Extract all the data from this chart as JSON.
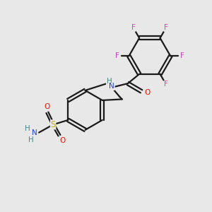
{
  "background_color": "#e8e8e8",
  "bond_color": "#1a1a1a",
  "F_color": "#cc44bb",
  "O_color": "#ee1100",
  "N_color": "#2244cc",
  "S_color": "#ccaa00",
  "H_color": "#448888",
  "figsize": [
    3.0,
    3.0
  ],
  "dpi": 100,
  "xlim": [
    0,
    10
  ],
  "ylim": [
    0,
    10
  ]
}
